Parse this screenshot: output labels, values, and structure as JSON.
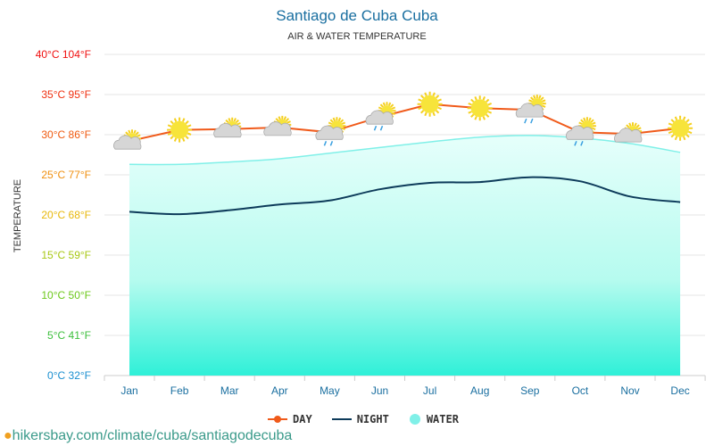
{
  "chart_data": {
    "type": "line",
    "title": "Santiago de Cuba Cuba",
    "subtitle": "AIR & WATER TEMPERATURE",
    "ylabel": "TEMPERATURE",
    "ylim": [
      0,
      40
    ],
    "yticks": [
      {
        "v": 0,
        "label": "0°C 32°F",
        "color": "#1a8fd0"
      },
      {
        "v": 5,
        "label": "5°C 41°F",
        "color": "#3cbf3c"
      },
      {
        "v": 10,
        "label": "10°C 50°F",
        "color": "#6cc81a"
      },
      {
        "v": 15,
        "label": "15°C 59°F",
        "color": "#a8c814"
      },
      {
        "v": 20,
        "label": "20°C 68°F",
        "color": "#e8b80c"
      },
      {
        "v": 25,
        "label": "25°C 77°F",
        "color": "#f09010"
      },
      {
        "v": 30,
        "label": "30°C 86°F",
        "color": "#f05a10"
      },
      {
        "v": 35,
        "label": "35°C 95°F",
        "color": "#f03010"
      },
      {
        "v": 40,
        "label": "40°C 104°F",
        "color": "#f01010"
      }
    ],
    "categories": [
      "Jan",
      "Feb",
      "Mar",
      "Apr",
      "May",
      "Jun",
      "Jul",
      "Aug",
      "Sep",
      "Oct",
      "Nov",
      "Dec"
    ],
    "series": [
      {
        "name": "DAY",
        "color": "#f05a1a",
        "values": [
          29.2,
          30.6,
          30.7,
          30.9,
          30.3,
          32.2,
          33.8,
          33.3,
          33.1,
          30.3,
          30.1,
          30.8
        ]
      },
      {
        "name": "NIGHT",
        "color": "#0d3b5a",
        "values": [
          20.4,
          20.1,
          20.6,
          21.3,
          21.8,
          23.2,
          24.0,
          24.1,
          24.7,
          24.2,
          22.3,
          21.6
        ]
      },
      {
        "name": "WATER",
        "color": "#80f0e8",
        "values": [
          26.3,
          26.3,
          26.6,
          27.0,
          27.7,
          28.4,
          29.1,
          29.7,
          29.9,
          29.6,
          28.9,
          27.8
        ]
      }
    ],
    "weather_icons": [
      "partly-cloudy",
      "sun",
      "partly-cloudy",
      "partly-cloudy",
      "rain",
      "rain",
      "sun",
      "sun",
      "rain",
      "rain",
      "partly-cloudy",
      "sun"
    ],
    "grid": true,
    "legend": "bottom"
  },
  "footer": {
    "url": "hikersbay.com/climate/cuba/santiagodecuba"
  }
}
